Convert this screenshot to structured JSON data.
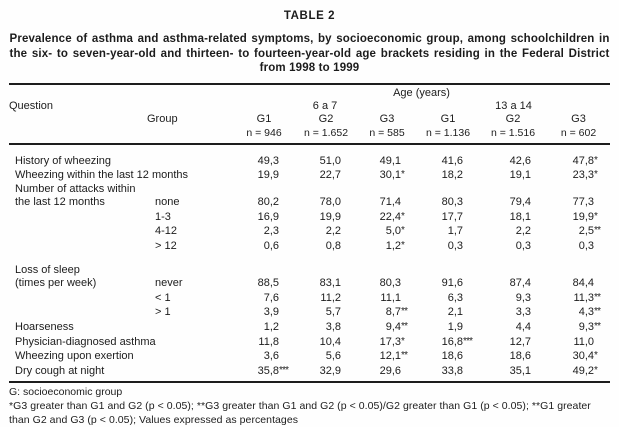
{
  "title": "TABLE 2",
  "subtitle": "Prevalence of asthma and asthma-related symptoms, by socioeconomic group, among schoolchildren in the six- to seven-year-old and thirteen- to fourteen-year-old age brackets residing in the Federal District from 1998 to 1999",
  "table": {
    "header": {
      "age_label": "Age (years)",
      "question": "Question",
      "group": "Group",
      "span_6_7": "6 a 7",
      "span_13_14": "13 a 14",
      "group_cols": [
        "G1",
        "G2",
        "G3",
        "G1",
        "G2",
        "G3"
      ],
      "n_cols": [
        "n = 946",
        "n = 1.652",
        "n = 585",
        "n = 1.136",
        "n = 1.516",
        "n = 602"
      ]
    },
    "rows": [
      {
        "question": "History of wheezing",
        "group": "",
        "values": [
          "49,3",
          "51,0",
          "49,1",
          "41,6",
          "42,6",
          "47,8*"
        ]
      },
      {
        "question": "Wheezing within the last 12 months",
        "group": "",
        "values": [
          "19,9",
          "22,7",
          "30,1*",
          "18,2",
          "19,1",
          "23,3*"
        ]
      },
      {
        "question": "Number of attacks within",
        "group": "",
        "values": [
          "",
          "",
          "",
          "",
          "",
          ""
        ]
      },
      {
        "question": "the last 12 months",
        "group": "none",
        "values": [
          "80,2",
          "78,0",
          "71,4",
          "80,3",
          "79,4",
          "77,3"
        ]
      },
      {
        "question": "",
        "group": "1-3",
        "values": [
          "16,9",
          "19,9",
          "22,4*",
          "17,7",
          "18,1",
          "19,9*"
        ]
      },
      {
        "question": "",
        "group": "4-12",
        "values": [
          "2,3",
          "2,2",
          "5,0*",
          "1,7",
          "2,2",
          "2,5**"
        ]
      },
      {
        "question": "",
        "group": "> 12",
        "values": [
          "0,6",
          "0,8",
          "1,2*",
          "0,3",
          "0,3",
          "0,3"
        ]
      },
      {
        "question": "Loss of sleep",
        "group": "",
        "values": [
          "",
          "",
          "",
          "",
          "",
          ""
        ],
        "gap_above": true
      },
      {
        "question": "(times per week)",
        "group": "never",
        "values": [
          "88,5",
          "83,1",
          "80,3",
          "91,6",
          "87,4",
          "84,4"
        ]
      },
      {
        "question": "",
        "group": "< 1",
        "values": [
          "7,6",
          "11,2",
          "11,1",
          "6,3",
          "9,3",
          "11,3**"
        ]
      },
      {
        "question": "",
        "group": "> 1",
        "values": [
          "3,9",
          "5,7",
          "8,7**",
          "2,1",
          "3,3",
          "4,3**"
        ]
      },
      {
        "question": "Hoarseness",
        "group": "",
        "values": [
          "1,2",
          "3,8",
          "9,4**",
          "1,9",
          "4,4",
          "9,3**"
        ]
      },
      {
        "question": "Physician-diagnosed asthma",
        "group": "",
        "values": [
          "11,8",
          "10,4",
          "17,3*",
          "16,8***",
          "12,7",
          "11,0"
        ]
      },
      {
        "question": "Wheezing upon exertion",
        "group": "",
        "values": [
          "3,6",
          "5,6",
          "12,1**",
          "18,6",
          "18,6",
          "30,4*"
        ]
      },
      {
        "question": "Dry cough at night",
        "group": "",
        "values": [
          "35,8***",
          "32,9",
          "29,6",
          "33,8",
          "35,1",
          "49,2*"
        ]
      }
    ]
  },
  "footnotes": {
    "legend": "G: socioeconomic group",
    "significance": "*G3 greater than G1 and G2 (p < 0.05); **G3 greater than G1 and G2 (p < 0.05)/G2 greater than G1 (p < 0.05); **G1 greater than G2 and G3 (p < 0.05); Values expressed as percentages"
  }
}
